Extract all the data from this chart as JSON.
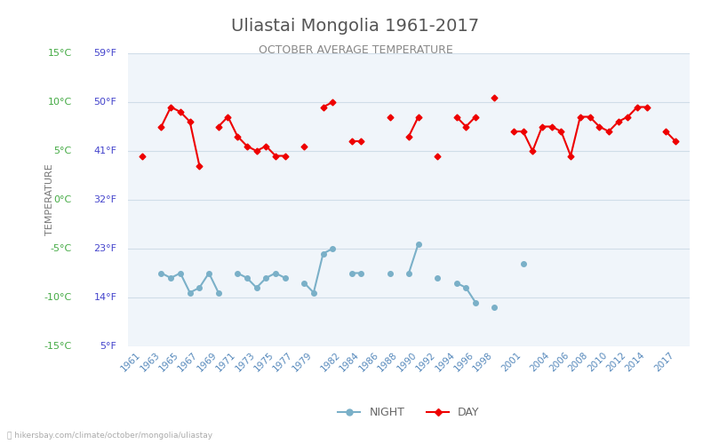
{
  "title": "Uliastai Mongolia 1961-2017",
  "subtitle": "OCTOBER AVERAGE TEMPERATURE",
  "ylabel": "TEMPERATURE",
  "xlabel": "",
  "bg_color": "#ffffff",
  "grid_color": "#d0dde8",
  "plot_bg": "#f0f5fa",
  "years": [
    1961,
    1962,
    1963,
    1964,
    1965,
    1966,
    1967,
    1968,
    1969,
    1970,
    1971,
    1972,
    1973,
    1974,
    1975,
    1976,
    1977,
    1978,
    1979,
    1980,
    1981,
    1982,
    1983,
    1984,
    1985,
    1986,
    1987,
    1988,
    1989,
    1990,
    1991,
    1992,
    1993,
    1994,
    1995,
    1996,
    1997,
    1998,
    1999,
    2000,
    2001,
    2002,
    2003,
    2004,
    2005,
    2006,
    2007,
    2008,
    2009,
    2010,
    2011,
    2012,
    2013,
    2014,
    2015,
    2016,
    2017
  ],
  "day_temps": [
    4.5,
    null,
    7.5,
    9.5,
    9.0,
    8.0,
    3.5,
    null,
    7.5,
    8.5,
    6.5,
    5.5,
    5.0,
    5.5,
    4.5,
    4.5,
    null,
    5.5,
    null,
    9.5,
    10.0,
    null,
    6.0,
    6.0,
    null,
    null,
    8.5,
    null,
    6.5,
    8.5,
    null,
    4.5,
    null,
    8.5,
    7.5,
    8.5,
    null,
    10.5,
    null,
    7.0,
    7.0,
    5.0,
    7.5,
    7.5,
    7.0,
    4.5,
    8.5,
    8.5,
    7.5,
    7.0,
    8.0,
    8.5,
    9.5,
    9.5,
    null,
    7.0,
    6.0
  ],
  "night_temps": [
    null,
    null,
    -7.5,
    -8.0,
    -7.5,
    -9.5,
    -9.0,
    -7.5,
    -9.5,
    null,
    -7.5,
    -8.0,
    -9.0,
    -8.0,
    -7.5,
    -8.0,
    null,
    -8.5,
    -9.5,
    -5.5,
    -5.0,
    null,
    -7.5,
    -7.5,
    null,
    null,
    -7.5,
    null,
    -7.5,
    -4.5,
    null,
    -8.0,
    null,
    -8.5,
    -9.0,
    -10.5,
    null,
    -11.0,
    null,
    null,
    -6.5,
    null,
    null,
    null,
    null,
    null,
    null,
    null,
    null,
    null,
    null,
    null,
    null,
    null,
    null,
    null,
    null
  ],
  "ylim": [
    -15,
    15
  ],
  "yticks": [
    -15,
    -10,
    -5,
    0,
    5,
    10,
    15
  ],
  "ytick_labels_c": [
    "-15°C",
    "-10°C",
    "-5°C",
    "0°C",
    "5°C",
    "10°C",
    "15°C"
  ],
  "ytick_labels_f": [
    "5°F",
    "14°F",
    "23°F",
    "32°F",
    "41°F",
    "50°F",
    "59°F"
  ],
  "day_color": "#ee0000",
  "night_color": "#7ab0c8",
  "title_color": "#555555",
  "subtitle_color": "#888888",
  "ylabel_color": "#777777",
  "ytick_green_color": "#44aa44",
  "ytick_blue_color": "#4444cc",
  "xtick_color": "#5588bb",
  "watermark": "hikersbay.com/climate/october/mongolia/uliastay",
  "legend_night": "NIGHT",
  "legend_day": "DAY",
  "xtick_years": [
    1961,
    1963,
    1965,
    1967,
    1969,
    1971,
    1973,
    1975,
    1977,
    1979,
    1982,
    1984,
    1986,
    1988,
    1990,
    1992,
    1994,
    1996,
    1998,
    2001,
    2004,
    2006,
    2008,
    2010,
    2012,
    2014,
    2017
  ]
}
